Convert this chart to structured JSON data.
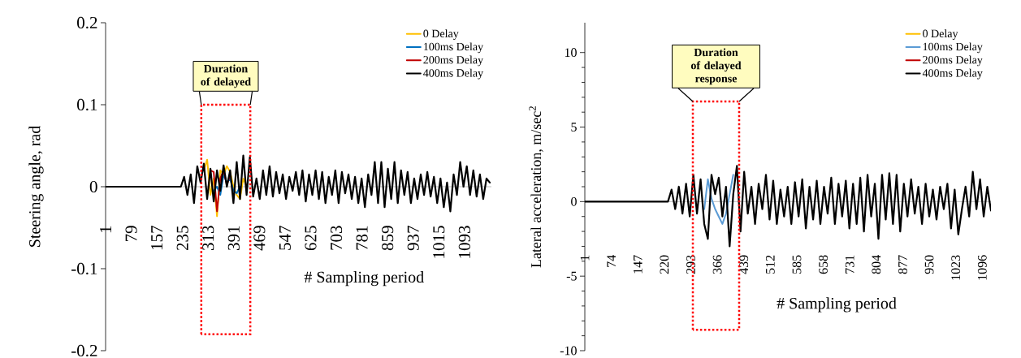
{
  "chart_data": [
    {
      "type": "line",
      "ylabel": "Steering angle, rad",
      "xlabel": "# Sampling period",
      "xlim": [
        1,
        1175
      ],
      "ylim": [
        -0.2,
        0.2
      ],
      "xticks": [
        1,
        79,
        157,
        235,
        313,
        391,
        469,
        547,
        625,
        703,
        781,
        859,
        937,
        1015,
        1093
      ],
      "yticks": [
        -0.2,
        -0.1,
        0,
        0.1,
        0.2
      ],
      "legend": "top right",
      "annotations": [
        "Duration of delayed"
      ],
      "series": [
        {
          "name": "0 Delay",
          "color": "#ffc000",
          "x": [
            300,
            310,
            320,
            330,
            340,
            350,
            360,
            370,
            380,
            390,
            400,
            410,
            420,
            430
          ],
          "values": [
            0.02,
            0.033,
            -0.01,
            0.01,
            -0.036,
            0.02,
            0.015,
            0.025,
            0.018,
            0.0,
            -0.01,
            -0.015,
            0.01,
            0.0
          ]
        },
        {
          "name": "100ms Delay",
          "color": "#0070c0",
          "x": [
            330,
            340,
            350,
            360,
            370,
            380,
            390,
            400,
            410
          ],
          "values": [
            -0.005,
            0.0,
            -0.01,
            0.015,
            0.005,
            0.01,
            -0.005,
            -0.008,
            0.0
          ]
        },
        {
          "name": "200ms Delay",
          "color": "#c00000",
          "x": [
            320,
            330,
            340,
            350,
            360,
            370,
            380
          ],
          "values": [
            0.02,
            0.018,
            -0.03,
            0.01,
            0.02,
            0.002,
            0.015
          ]
        },
        {
          "name": "400ms Delay",
          "color": "#000000",
          "x": [
            1,
            230,
            240,
            250,
            260,
            270,
            280,
            290,
            300,
            310,
            320,
            330,
            340,
            350,
            360,
            370,
            380,
            390,
            400,
            410,
            420,
            430,
            440,
            450,
            460,
            470,
            480,
            490,
            500,
            510,
            520,
            530,
            540,
            550,
            560,
            570,
            580,
            590,
            600,
            610,
            620,
            630,
            640,
            650,
            660,
            670,
            680,
            690,
            700,
            710,
            720,
            730,
            740,
            750,
            760,
            770,
            780,
            790,
            800,
            810,
            820,
            830,
            840,
            850,
            860,
            870,
            880,
            890,
            900,
            910,
            920,
            930,
            940,
            950,
            960,
            970,
            980,
            990,
            1000,
            1010,
            1020,
            1030,
            1040,
            1050,
            1060,
            1070,
            1080,
            1090,
            1100,
            1110,
            1120,
            1130,
            1140,
            1150,
            1160,
            1170
          ],
          "values": [
            0,
            0,
            0.012,
            -0.01,
            0.015,
            -0.02,
            0.025,
            0.005,
            0.028,
            -0.015,
            0.022,
            -0.018,
            0.02,
            -0.005,
            0.026,
            0.0,
            0.02,
            -0.02,
            0.03,
            -0.015,
            0.038,
            -0.01,
            0.036,
            -0.012,
            0.01,
            -0.015,
            0.02,
            -0.01,
            0.025,
            -0.012,
            0.018,
            -0.008,
            0.015,
            -0.015,
            0.012,
            -0.005,
            0.018,
            -0.01,
            0.02,
            -0.018,
            0.015,
            -0.01,
            0.02,
            -0.015,
            0.018,
            -0.02,
            0.012,
            -0.01,
            0.02,
            -0.02,
            0.018,
            -0.008,
            0.015,
            -0.015,
            0.012,
            -0.02,
            0.01,
            -0.025,
            0.015,
            -0.01,
            0.03,
            -0.02,
            0.03,
            -0.025,
            0.022,
            -0.015,
            0.03,
            -0.02,
            0.02,
            -0.01,
            0.018,
            -0.02,
            0.01,
            -0.015,
            0.015,
            -0.01,
            0.018,
            -0.012,
            0.012,
            -0.02,
            0.01,
            -0.025,
            0.005,
            -0.03,
            0.015,
            -0.01,
            0.03,
            0.0,
            0.025,
            -0.01,
            0.02,
            -0.012,
            0.015,
            -0.015,
            0.01,
            0.005
          ]
        }
      ]
    },
    {
      "type": "line",
      "ylabel": "Lateral acceleration, m/sec$^{2}$",
      "xlabel": "# Sampling period",
      "xlim": [
        1,
        1120
      ],
      "ylim": [
        -10,
        12
      ],
      "xticks": [
        1,
        74,
        147,
        220,
        293,
        366,
        439,
        512,
        585,
        658,
        731,
        804,
        877,
        950,
        1023,
        1096
      ],
      "yticks": [
        -10,
        -5,
        0,
        5,
        10
      ],
      "legend": "top right",
      "annotations": [
        "Duration of delayed response"
      ],
      "series": [
        {
          "name": "0 Delay",
          "color": "#ffc000"
        },
        {
          "name": "100ms Delay",
          "color": "#5b9bd5",
          "x": [
            330,
            340,
            350,
            360,
            370,
            380,
            390,
            400,
            410
          ],
          "values": [
            -0.5,
            1.5,
            0.2,
            -0.5,
            -1.0,
            -1.5,
            -0.8,
            0.5,
            1.8
          ]
        },
        {
          "name": "200ms Delay",
          "color": "#c00000"
        },
        {
          "name": "400ms Delay",
          "color": "#000000",
          "x": [
            1,
            230,
            240,
            250,
            260,
            270,
            280,
            290,
            300,
            310,
            320,
            330,
            340,
            350,
            360,
            370,
            380,
            390,
            400,
            410,
            420,
            430,
            440,
            450,
            460,
            470,
            480,
            490,
            500,
            510,
            520,
            530,
            540,
            550,
            560,
            570,
            580,
            590,
            600,
            610,
            620,
            630,
            640,
            650,
            660,
            670,
            680,
            690,
            700,
            710,
            720,
            730,
            740,
            750,
            760,
            770,
            780,
            790,
            800,
            810,
            820,
            830,
            840,
            850,
            860,
            870,
            880,
            890,
            900,
            910,
            920,
            930,
            940,
            950,
            960,
            970,
            980,
            990,
            1000,
            1010,
            1020,
            1030,
            1040,
            1050,
            1060,
            1070,
            1080,
            1090,
            1100,
            1110,
            1120
          ],
          "values": [
            0,
            0,
            0.8,
            -0.5,
            1.0,
            -0.8,
            1.2,
            -1.0,
            1.8,
            -0.8,
            1.5,
            -1.5,
            -2.5,
            1.8,
            0.5,
            1.6,
            -1.0,
            1.0,
            -3.0,
            0.5,
            2.4,
            -2.0,
            2.0,
            -0.8,
            1.0,
            -1.5,
            1.2,
            -0.5,
            1.8,
            -1.2,
            1.4,
            -1.5,
            0.8,
            -1.0,
            1.0,
            -1.5,
            1.3,
            -1.0,
            1.5,
            -1.8,
            1.0,
            -1.2,
            1.4,
            -1.5,
            1.0,
            -0.8,
            1.6,
            -1.5,
            1.2,
            -1.0,
            1.4,
            -1.8,
            1.2,
            -1.5,
            1.6,
            -2.0,
            1.8,
            -1.0,
            1.2,
            -2.5,
            1.8,
            -1.2,
            1.9,
            -1.5,
            1.8,
            -2.0,
            1.2,
            -1.0,
            1.5,
            -0.8,
            1.0,
            -1.5,
            1.2,
            -1.0,
            0.8,
            -1.2,
            1.0,
            -0.5,
            1.2,
            -1.8,
            0.8,
            -2.2,
            -0.5,
            1.0,
            -1.0,
            2.0,
            -0.5,
            1.5,
            -1.0,
            1.0,
            -0.6
          ]
        }
      ]
    }
  ]
}
